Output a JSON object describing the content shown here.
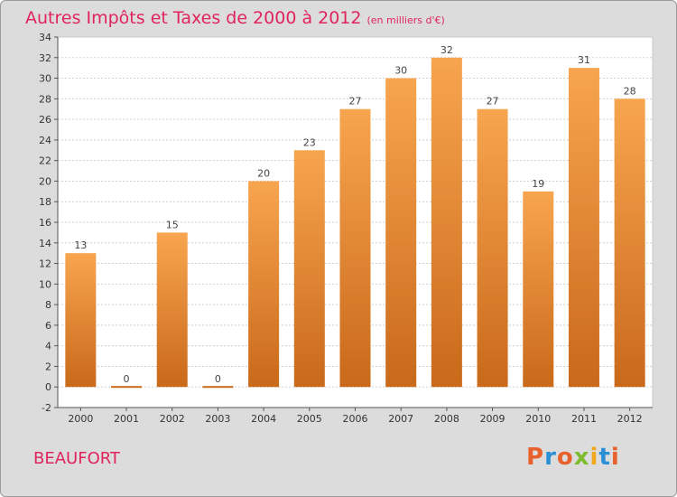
{
  "header": {
    "title": "Autres Impôts et Taxes de 2000 à 2012",
    "unit": "(en milliers d'€)"
  },
  "footer": {
    "town": "BEAUFORT",
    "logo": {
      "text": "Proxiti",
      "letters": [
        {
          "ch": "P",
          "color": "#e8612c"
        },
        {
          "ch": "r",
          "color": "#2b8fd6"
        },
        {
          "ch": "o",
          "color": "#e8612c"
        },
        {
          "ch": "x",
          "color": "#7dbb2f"
        },
        {
          "ch": "i",
          "color": "#f2a81d"
        },
        {
          "ch": "t",
          "color": "#2b8fd6"
        },
        {
          "ch": "i",
          "color": "#e8612c"
        }
      ]
    }
  },
  "colors": {
    "bar_top": "#f8a54f",
    "bar_bottom": "#c9691a",
    "plot_bg": "#ffffff",
    "grid": "#d0d0d0",
    "title": "#e0245c"
  },
  "chart_data": {
    "type": "bar",
    "categories": [
      "2000",
      "2001",
      "2002",
      "2003",
      "2004",
      "2005",
      "2006",
      "2007",
      "2008",
      "2009",
      "2010",
      "2011",
      "2012"
    ],
    "values": [
      13,
      0,
      15,
      0,
      20,
      23,
      27,
      30,
      32,
      27,
      19,
      31,
      28
    ],
    "ylim": [
      -2,
      34
    ],
    "yticks": [
      -2,
      0,
      2,
      4,
      6,
      8,
      10,
      12,
      14,
      16,
      18,
      20,
      22,
      24,
      26,
      28,
      30,
      32,
      34
    ],
    "grid": true,
    "legend": "none"
  }
}
